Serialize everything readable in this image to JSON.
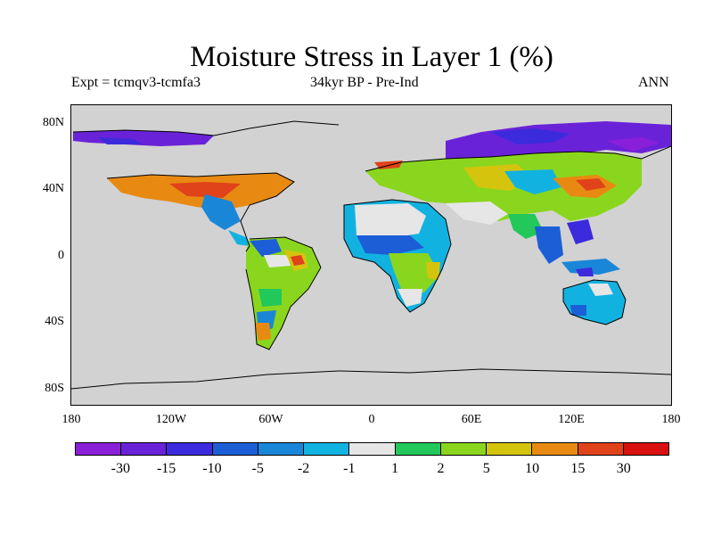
{
  "title": "Moisture Stress in Layer 1 (%)",
  "subtitle_left": "Expt = tcmqv3-tcmfa3",
  "subtitle_center": "34kyr BP - Pre-Ind",
  "subtitle_right": "ANN",
  "map": {
    "background_color": "#d2d2d2",
    "y_ticks": [
      "80N",
      "40N",
      "0",
      "40S",
      "80S"
    ],
    "x_ticks": [
      "180",
      "120W",
      "60W",
      "0",
      "60E",
      "120E",
      "180"
    ]
  },
  "colorbar": {
    "colors": [
      "#8a1fd9",
      "#6a22d8",
      "#3b2bdc",
      "#1c5ed6",
      "#1a86d8",
      "#12b2e0",
      "#e6e6e6",
      "#22c85a",
      "#8ad61e",
      "#d4c40e",
      "#e88a12",
      "#e0421a",
      "#d81010"
    ],
    "labels": [
      "-30",
      "-15",
      "-10",
      "-5",
      "-2",
      "-1",
      "1",
      "2",
      "5",
      "10",
      "15",
      "30"
    ]
  }
}
